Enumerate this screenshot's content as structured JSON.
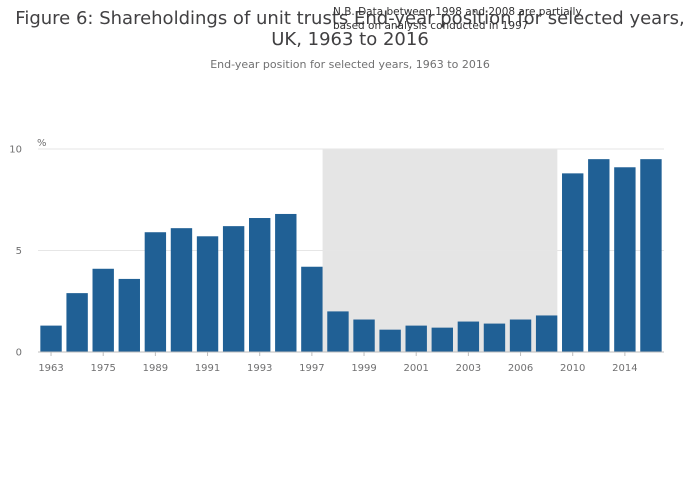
{
  "chart_data": {
    "type": "bar",
    "title_lines": [
      "Figure 6: Shareholdings of unit trusts End-year position for selected years,",
      "UK, 1963 to 2016"
    ],
    "subtitle": "End-year position for selected years, 1963 to 2016",
    "annotation_lines": [
      "N.B. Data between 1998 and 2008 are partially",
      "based on analysis conducted in 1997"
    ],
    "ylabel": "%",
    "ylim": [
      0,
      10
    ],
    "y_ticks": [
      0,
      5,
      10
    ],
    "grid": true,
    "colors": {
      "bar": "#206095",
      "highlight_band": "#e5e5e5",
      "grid": "#e6e6e6"
    },
    "categories": [
      "1963",
      "1969",
      "1975",
      "1981",
      "1989",
      "1990",
      "1991",
      "1992",
      "1993",
      "1994",
      "1997",
      "1998",
      "1999",
      "2000",
      "2001",
      "2002",
      "2003",
      "2004",
      "2006",
      "2008",
      "2010",
      "2012",
      "2014",
      "2016"
    ],
    "x_tick_labels": [
      "1963",
      "1975",
      "1989",
      "1991",
      "1993",
      "1997",
      "1999",
      "2001",
      "2003",
      "2006",
      "2010",
      "2014"
    ],
    "values": [
      1.3,
      2.9,
      4.1,
      3.6,
      5.9,
      6.1,
      5.7,
      6.2,
      6.6,
      6.8,
      4.2,
      2.0,
      1.6,
      1.1,
      1.3,
      1.2,
      1.5,
      1.4,
      1.6,
      1.8,
      8.8,
      9.5,
      9.1,
      9.5
    ],
    "highlight_range": [
      "1998",
      "2008"
    ]
  }
}
